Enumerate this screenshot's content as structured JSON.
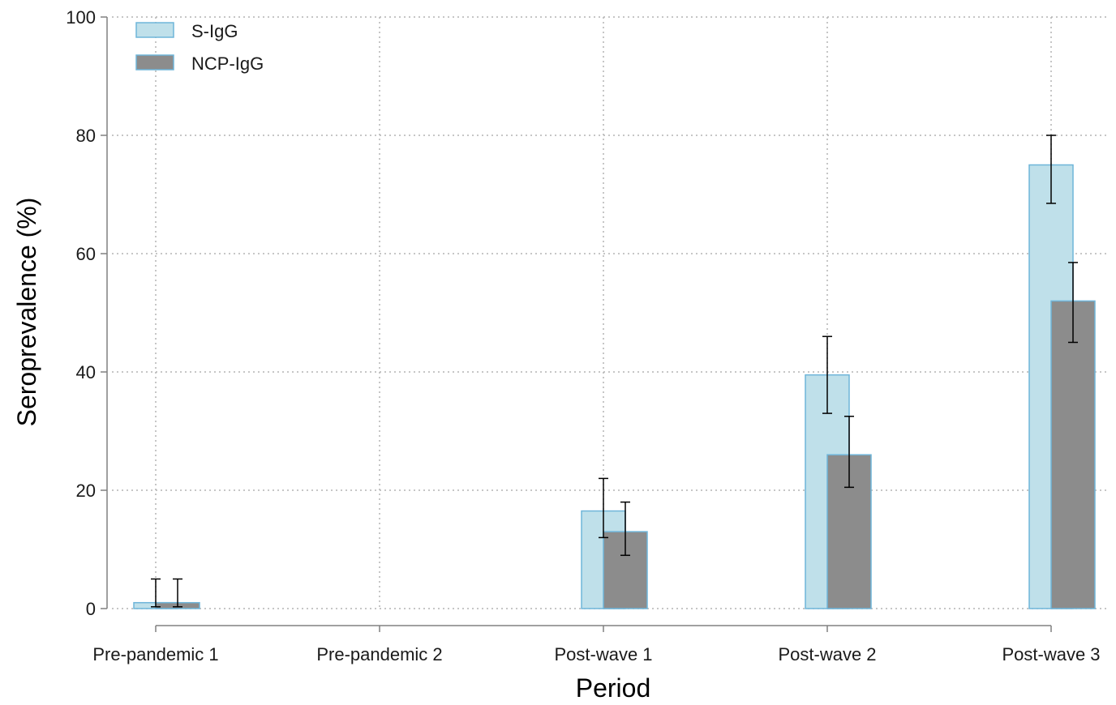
{
  "chart_data": {
    "type": "bar",
    "xlabel": "Period",
    "ylabel": "Seroprevalence (%)",
    "ylim": [
      0,
      100
    ],
    "yticks": [
      0,
      20,
      40,
      60,
      80,
      100
    ],
    "grid": "dotted",
    "legend_position": "top-left",
    "categories": [
      "Pre-pandemic 1",
      "Pre-pandemic 2",
      "Post-wave 1",
      "Post-wave 2",
      "Post-wave 3"
    ],
    "series": [
      {
        "name": "S-IgG",
        "color": "#bfe0ea",
        "edge_color": "#6fb5d9",
        "values": [
          1.0,
          null,
          16.5,
          39.5,
          75.0
        ],
        "ci_low": [
          0.3,
          null,
          12.0,
          33.0,
          68.5
        ],
        "ci_high": [
          5.0,
          null,
          22.0,
          46.0,
          80.0
        ]
      },
      {
        "name": "NCP-IgG",
        "color": "#8c8c8c",
        "edge_color": "#6fb5d9",
        "values": [
          1.0,
          null,
          13.0,
          26.0,
          52.0
        ],
        "ci_low": [
          0.3,
          null,
          9.0,
          20.5,
          45.0
        ],
        "ci_high": [
          5.0,
          null,
          18.0,
          32.5,
          58.5
        ]
      }
    ]
  }
}
